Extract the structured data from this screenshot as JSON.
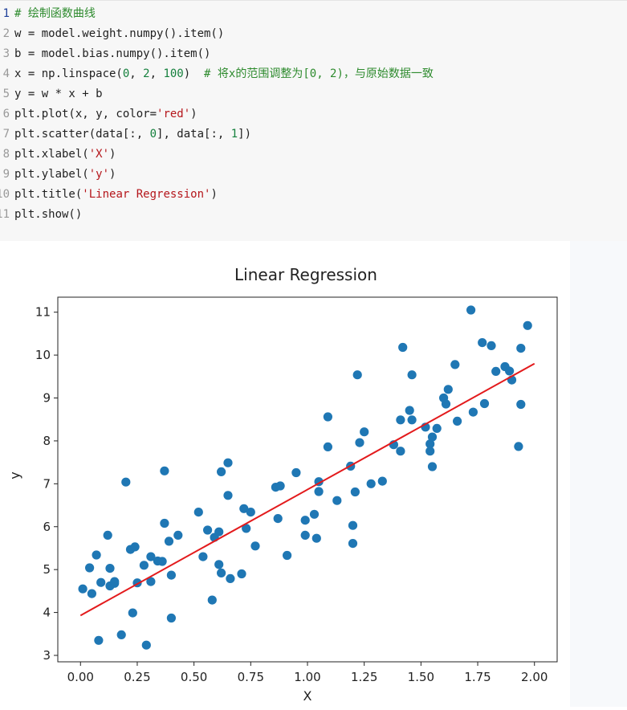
{
  "code": {
    "lines": [
      {
        "n": "1",
        "parts": [
          {
            "t": "# 绘制函数曲线",
            "c": "comment"
          }
        ]
      },
      {
        "n": "2",
        "parts": [
          {
            "t": "w = model.weight.numpy().item()",
            "c": ""
          }
        ]
      },
      {
        "n": "3",
        "parts": [
          {
            "t": "b = model.bias.numpy().item()",
            "c": ""
          }
        ]
      },
      {
        "n": "4",
        "parts": [
          {
            "t": "x = np.linspace(",
            "c": ""
          },
          {
            "t": "0",
            "c": "number"
          },
          {
            "t": ", ",
            "c": ""
          },
          {
            "t": "2",
            "c": "number"
          },
          {
            "t": ", ",
            "c": ""
          },
          {
            "t": "100",
            "c": "number"
          },
          {
            "t": ")  ",
            "c": ""
          },
          {
            "t": "# 将x的范围调整为[0, 2)，与原始数据一致",
            "c": "comment"
          }
        ]
      },
      {
        "n": "5",
        "parts": [
          {
            "t": "y = w * x + b",
            "c": ""
          }
        ]
      },
      {
        "n": "6",
        "parts": [
          {
            "t": "plt.plot(x, y, color=",
            "c": ""
          },
          {
            "t": "'red'",
            "c": "string"
          },
          {
            "t": ")",
            "c": ""
          }
        ]
      },
      {
        "n": "7",
        "parts": [
          {
            "t": "plt.scatter(data[:, ",
            "c": ""
          },
          {
            "t": "0",
            "c": "number"
          },
          {
            "t": "], data[:, ",
            "c": ""
          },
          {
            "t": "1",
            "c": "number"
          },
          {
            "t": "])",
            "c": ""
          }
        ]
      },
      {
        "n": "8",
        "parts": [
          {
            "t": "plt.xlabel(",
            "c": ""
          },
          {
            "t": "'X'",
            "c": "string"
          },
          {
            "t": ")",
            "c": ""
          }
        ]
      },
      {
        "n": "9",
        "parts": [
          {
            "t": "plt.ylabel(",
            "c": ""
          },
          {
            "t": "'y'",
            "c": "string"
          },
          {
            "t": ")",
            "c": ""
          }
        ]
      },
      {
        "n": "10",
        "parts": [
          {
            "t": "plt.title(",
            "c": ""
          },
          {
            "t": "'Linear Regression'",
            "c": "string"
          },
          {
            "t": ")",
            "c": ""
          }
        ]
      },
      {
        "n": "11",
        "parts": [
          {
            "t": "plt.show()",
            "c": ""
          }
        ]
      }
    ]
  },
  "chart_data": {
    "type": "scatter",
    "title": "Linear Regression",
    "xlabel": "X",
    "ylabel": "y",
    "xlim": [
      -0.1,
      2.1
    ],
    "ylim": [
      2.85,
      11.35
    ],
    "xticks": [
      0.0,
      0.25,
      0.5,
      0.75,
      1.0,
      1.25,
      1.5,
      1.75,
      2.0
    ],
    "xtick_labels": [
      "0.00",
      "0.25",
      "0.50",
      "0.75",
      "1.00",
      "1.25",
      "1.50",
      "1.75",
      "2.00"
    ],
    "yticks": [
      3,
      4,
      5,
      6,
      7,
      8,
      9,
      10,
      11
    ],
    "ytick_labels": [
      "3",
      "4",
      "5",
      "6",
      "7",
      "8",
      "9",
      "10",
      "11"
    ],
    "grid": false,
    "scatter_color": "#1f77b4",
    "line_color": "#e31a1c",
    "line": {
      "x": [
        0.0,
        2.0
      ],
      "y": [
        3.93,
        9.8
      ]
    },
    "points": [
      [
        0.01,
        4.55
      ],
      [
        0.04,
        5.04
      ],
      [
        0.05,
        4.44
      ],
      [
        0.07,
        5.34
      ],
      [
        0.08,
        3.35
      ],
      [
        0.09,
        4.7
      ],
      [
        0.12,
        5.8
      ],
      [
        0.13,
        4.62
      ],
      [
        0.13,
        5.03
      ],
      [
        0.15,
        4.68
      ],
      [
        0.15,
        4.72
      ],
      [
        0.18,
        3.48
      ],
      [
        0.2,
        7.04
      ],
      [
        0.22,
        5.47
      ],
      [
        0.23,
        3.99
      ],
      [
        0.24,
        5.53
      ],
      [
        0.25,
        4.69
      ],
      [
        0.28,
        5.1
      ],
      [
        0.29,
        3.24
      ],
      [
        0.31,
        4.72
      ],
      [
        0.31,
        5.3
      ],
      [
        0.34,
        5.2
      ],
      [
        0.36,
        5.19
      ],
      [
        0.37,
        7.3
      ],
      [
        0.37,
        6.08
      ],
      [
        0.39,
        5.66
      ],
      [
        0.4,
        4.87
      ],
      [
        0.4,
        3.87
      ],
      [
        0.43,
        5.8
      ],
      [
        0.52,
        6.34
      ],
      [
        0.54,
        5.3
      ],
      [
        0.56,
        5.92
      ],
      [
        0.58,
        4.29
      ],
      [
        0.59,
        5.75
      ],
      [
        0.61,
        5.88
      ],
      [
        0.61,
        5.12
      ],
      [
        0.62,
        7.28
      ],
      [
        0.62,
        4.92
      ],
      [
        0.65,
        7.49
      ],
      [
        0.65,
        6.73
      ],
      [
        0.66,
        4.79
      ],
      [
        0.71,
        4.9
      ],
      [
        0.72,
        6.42
      ],
      [
        0.73,
        5.96
      ],
      [
        0.75,
        6.34
      ],
      [
        0.77,
        5.55
      ],
      [
        0.86,
        6.92
      ],
      [
        0.87,
        6.19
      ],
      [
        0.88,
        6.95
      ],
      [
        0.91,
        5.33
      ],
      [
        0.95,
        7.26
      ],
      [
        0.99,
        6.15
      ],
      [
        0.99,
        5.8
      ],
      [
        1.03,
        6.29
      ],
      [
        1.04,
        5.73
      ],
      [
        1.05,
        6.82
      ],
      [
        1.05,
        7.05
      ],
      [
        1.09,
        8.56
      ],
      [
        1.09,
        7.86
      ],
      [
        1.13,
        6.61
      ],
      [
        1.19,
        7.41
      ],
      [
        1.2,
        6.03
      ],
      [
        1.2,
        5.61
      ],
      [
        1.21,
        6.81
      ],
      [
        1.22,
        9.54
      ],
      [
        1.23,
        7.96
      ],
      [
        1.25,
        8.21
      ],
      [
        1.28,
        7.0
      ],
      [
        1.33,
        7.06
      ],
      [
        1.38,
        7.91
      ],
      [
        1.41,
        8.49
      ],
      [
        1.41,
        7.76
      ],
      [
        1.42,
        10.18
      ],
      [
        1.45,
        8.71
      ],
      [
        1.46,
        9.54
      ],
      [
        1.46,
        8.49
      ],
      [
        1.52,
        8.32
      ],
      [
        1.54,
        7.93
      ],
      [
        1.54,
        7.76
      ],
      [
        1.55,
        8.09
      ],
      [
        1.55,
        7.4
      ],
      [
        1.57,
        8.29
      ],
      [
        1.6,
        9.0
      ],
      [
        1.61,
        8.86
      ],
      [
        1.62,
        9.2
      ],
      [
        1.65,
        9.78
      ],
      [
        1.66,
        8.46
      ],
      [
        1.72,
        11.05
      ],
      [
        1.73,
        8.67
      ],
      [
        1.77,
        10.29
      ],
      [
        1.78,
        8.87
      ],
      [
        1.81,
        10.22
      ],
      [
        1.83,
        9.62
      ],
      [
        1.87,
        9.73
      ],
      [
        1.89,
        9.63
      ],
      [
        1.9,
        9.42
      ],
      [
        1.93,
        7.87
      ],
      [
        1.94,
        10.16
      ],
      [
        1.94,
        8.85
      ],
      [
        1.97,
        10.69
      ]
    ]
  }
}
